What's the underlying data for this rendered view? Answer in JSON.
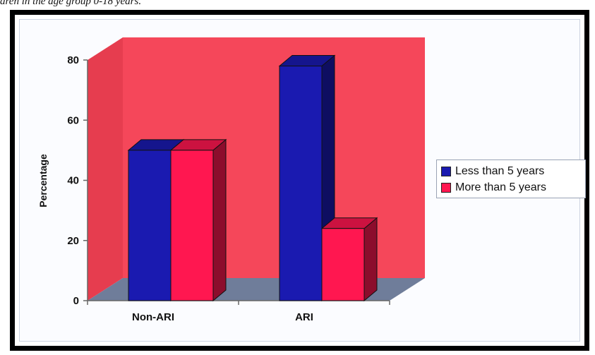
{
  "caption": "dren in the age group 0-18 years.",
  "chart_data": {
    "type": "bar",
    "categories": [
      "Non-ARI",
      "ARI"
    ],
    "series": [
      {
        "name": "Less than 5 years",
        "values": [
          50,
          78
        ],
        "color": "#1a1ab0"
      },
      {
        "name": "More than 5 years",
        "values": [
          50,
          24
        ],
        "color": "#ff1750"
      }
    ],
    "xlabel": "",
    "ylabel": "Percentage",
    "ylim": [
      0,
      80
    ],
    "yticks": [
      0,
      20,
      40,
      60,
      80
    ],
    "legend_position": "right",
    "style": "3d",
    "wall_color": "#f5475a",
    "floor_color": "#6f7d9a"
  }
}
